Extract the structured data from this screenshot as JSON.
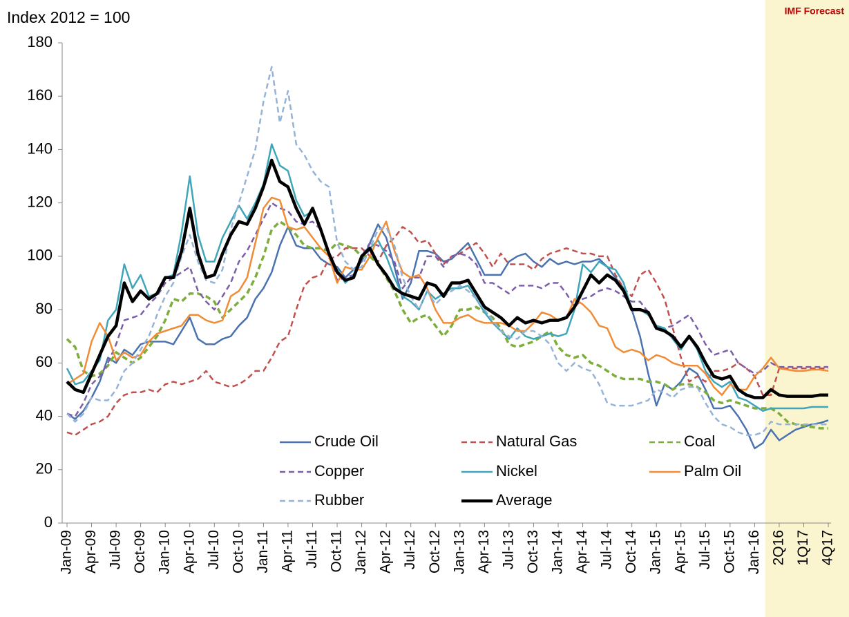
{
  "chart_data": {
    "type": "line",
    "y_label": "Index 2012 = 100",
    "annotation": "IMF Forecast",
    "categories": [
      "Jan-09",
      null,
      null,
      "Apr-09",
      null,
      null,
      "Jul-09",
      null,
      null,
      "Oct-09",
      null,
      null,
      "Jan-10",
      null,
      null,
      "Apr-10",
      null,
      null,
      "Jul-10",
      null,
      null,
      "Oct-10",
      null,
      null,
      "Jan-11",
      null,
      null,
      "Apr-11",
      null,
      null,
      "Jul-11",
      null,
      null,
      "Oct-11",
      null,
      null,
      "Jan-12",
      null,
      null,
      "Apr-12",
      null,
      null,
      "Jul-12",
      null,
      null,
      "Oct-12",
      null,
      null,
      "Jan-13",
      null,
      null,
      "Apr-13",
      null,
      null,
      "Jul-13",
      null,
      null,
      "Oct-13",
      null,
      null,
      "Jan-14",
      null,
      null,
      "Apr-14",
      null,
      null,
      "Jul-14",
      null,
      null,
      "Oct-14",
      null,
      null,
      "Jan-15",
      null,
      null,
      "Apr-15",
      null,
      null,
      "Jul-15",
      null,
      null,
      "Oct-15",
      null,
      null,
      "Jan-16",
      null,
      null,
      "2Q16",
      null,
      null,
      "1Q17",
      null,
      null,
      "4Q17"
    ],
    "ylim": [
      0,
      180
    ],
    "yticks": [
      0,
      20,
      40,
      60,
      80,
      100,
      120,
      140,
      160,
      180
    ],
    "grid": false,
    "legend": "bottom",
    "series": [
      {
        "name": "Crude Oil",
        "color": "#4a72b0",
        "dashed": false,
        "values": [
          41,
          39,
          42,
          47,
          53,
          62,
          60,
          65,
          63,
          67,
          68,
          68,
          68,
          67,
          72,
          77,
          69,
          67,
          67,
          69,
          70,
          74,
          77,
          84,
          88,
          94,
          104,
          111,
          104,
          103,
          103,
          99,
          97,
          96,
          92,
          95,
          98,
          105,
          112,
          107,
          96,
          84,
          90,
          102,
          102,
          101,
          98,
          99,
          102,
          105,
          99,
          93,
          93,
          93,
          98,
          100,
          101,
          98,
          96,
          99,
          97,
          98,
          97,
          98,
          98,
          99,
          96,
          92,
          88,
          80,
          70,
          56,
          44,
          52,
          50,
          53,
          58,
          56,
          50,
          43,
          43,
          44,
          40,
          35,
          28,
          30,
          35,
          31,
          33,
          35,
          36,
          37,
          37.5,
          38.5
        ]
      },
      {
        "name": "Natural Gas",
        "color": "#c0504d",
        "dashed": true,
        "values": [
          34,
          33,
          35,
          37,
          38,
          40,
          45,
          48,
          49,
          49,
          50,
          49,
          52,
          53,
          52,
          53,
          54,
          57,
          53,
          52,
          51,
          52,
          54,
          57,
          57,
          62,
          68,
          70,
          80,
          89,
          92,
          93,
          99,
          100,
          103,
          103,
          103,
          100,
          98,
          104,
          107,
          111,
          109,
          105,
          106,
          101,
          97,
          100,
          101,
          103,
          105,
          101,
          96,
          101,
          97,
          97,
          97,
          95,
          99,
          101,
          102,
          103,
          102,
          101,
          101,
          100,
          100,
          93,
          88,
          85,
          93,
          95,
          90,
          84,
          73,
          62,
          53,
          55,
          53,
          57,
          57,
          58,
          60,
          58,
          55,
          48,
          48,
          58,
          58,
          58,
          58,
          58,
          58,
          58
        ]
      },
      {
        "name": "Coal",
        "color": "#7dae3c",
        "dashed": true,
        "values": [
          69,
          66,
          57,
          55,
          56,
          59,
          64,
          62,
          60,
          62,
          66,
          70,
          76,
          84,
          83,
          86,
          86,
          85,
          83,
          77,
          80,
          83,
          86,
          92,
          100,
          110,
          113,
          111,
          108,
          104,
          103,
          103,
          102,
          105,
          104,
          103,
          100,
          100,
          97,
          92,
          87,
          80,
          75,
          77,
          78,
          74,
          70,
          74,
          80,
          80,
          81,
          79,
          77,
          73,
          67,
          66,
          67,
          68,
          70,
          72,
          66,
          63,
          62,
          63,
          60,
          59,
          57,
          55,
          54,
          54,
          54,
          53,
          53,
          52,
          50,
          52,
          52,
          51,
          49,
          46,
          45,
          46,
          45,
          44,
          43,
          43,
          43,
          41,
          38,
          37,
          36.5,
          36,
          35.5,
          35.5
        ]
      },
      {
        "name": "Copper",
        "color": "#7a5ea8",
        "dashed": true,
        "values": [
          41,
          40,
          45,
          52,
          55,
          60,
          67,
          76,
          77,
          78,
          82,
          85,
          90,
          92,
          94,
          96,
          87,
          83,
          80,
          85,
          90,
          98,
          102,
          108,
          114,
          120,
          118,
          117,
          113,
          112,
          113,
          110,
          100,
          91,
          92,
          93,
          100,
          105,
          104,
          102,
          98,
          88,
          92,
          92,
          100,
          100,
          96,
          100,
          101,
          100,
          97,
          90,
          90,
          88,
          86,
          89,
          89,
          89,
          88,
          90,
          90,
          86,
          81,
          84,
          85,
          87,
          88,
          87,
          85,
          83,
          83,
          79,
          73,
          73,
          74,
          76,
          78,
          73,
          67,
          63,
          64,
          65,
          60,
          58,
          56,
          57,
          60,
          58.5,
          58.5,
          58.5,
          58.5,
          58.5,
          58.5,
          58.5
        ]
      },
      {
        "name": "Nickel",
        "color": "#3fa5b8",
        "dashed": false,
        "values": [
          58,
          52,
          53,
          57,
          61,
          76,
          80,
          97,
          88,
          93,
          85,
          86,
          92,
          93,
          109,
          130,
          108,
          98,
          98,
          107,
          113,
          119,
          114,
          120,
          127,
          142,
          134,
          132,
          121,
          115,
          117,
          110,
          100,
          95,
          90,
          93,
          100,
          103,
          106,
          100,
          92,
          85,
          83,
          80,
          87,
          84,
          86,
          88,
          88,
          89,
          84,
          79,
          75,
          72,
          69,
          73,
          70,
          69,
          70,
          71,
          70,
          71,
          80,
          97,
          94,
          98,
          96,
          95,
          90,
          80,
          80,
          78,
          74,
          73,
          69,
          65,
          70,
          65,
          57,
          53,
          51,
          53,
          47,
          46,
          44,
          42,
          43,
          43,
          43,
          43,
          43,
          43.5,
          43.5,
          43.5
        ]
      },
      {
        "name": "Palm Oil",
        "color": "#f08c36",
        "dashed": false,
        "values": [
          52,
          54,
          56,
          68,
          75,
          70,
          61,
          64,
          62,
          63,
          68,
          71,
          72,
          73,
          74,
          78,
          78,
          76,
          75,
          76,
          85,
          87,
          92,
          105,
          118,
          122,
          121,
          111,
          110,
          111,
          107,
          103,
          100,
          90,
          96,
          95,
          95,
          100,
          107,
          113,
          102,
          94,
          92,
          93,
          88,
          80,
          75,
          75,
          77,
          78,
          76,
          75,
          75,
          75,
          74,
          72,
          72,
          75,
          79,
          78,
          76,
          77,
          84,
          82,
          79,
          74,
          73,
          66,
          64,
          65,
          64,
          61,
          63,
          62,
          60,
          59,
          59,
          59,
          56,
          51,
          48,
          52,
          50,
          50,
          55,
          58,
          62,
          58,
          57.5,
          57,
          57,
          57.5,
          57.5,
          57
        ]
      },
      {
        "name": "Rubber",
        "color": "#95b3d7",
        "dashed": true,
        "values": [
          41,
          38,
          41,
          47,
          46,
          46,
          50,
          57,
          60,
          65,
          70,
          78,
          85,
          90,
          100,
          108,
          98,
          91,
          90,
          95,
          110,
          120,
          130,
          140,
          158,
          171,
          150,
          162,
          142,
          138,
          132,
          128,
          126,
          105,
          98,
          95,
          96,
          103,
          110,
          111,
          104,
          92,
          85,
          80,
          87,
          82,
          85,
          87,
          89,
          87,
          84,
          80,
          76,
          72,
          70,
          69,
          72,
          72,
          70,
          67,
          60,
          57,
          60,
          58,
          57,
          52,
          45,
          44,
          44,
          44,
          45,
          46,
          50,
          49,
          47,
          50,
          51,
          51,
          45,
          40,
          37,
          36,
          34,
          33,
          33,
          34,
          38,
          37,
          37,
          37,
          37,
          37,
          37,
          37
        ]
      },
      {
        "name": "Average",
        "color": "#000000",
        "dashed": false,
        "values": [
          53,
          50,
          49,
          56,
          63,
          70,
          74,
          90,
          83,
          87,
          84,
          86,
          92,
          92,
          102,
          118,
          101,
          92,
          93,
          101,
          108,
          113,
          112,
          118,
          126,
          136,
          128,
          126,
          118,
          112,
          118,
          110,
          101,
          94,
          91,
          92,
          100,
          103,
          97,
          93,
          88,
          86,
          85,
          84,
          90,
          89,
          85,
          90,
          90,
          91,
          86,
          81,
          79,
          77,
          74,
          77,
          75,
          76,
          75,
          76,
          76,
          77,
          81,
          87,
          93,
          90,
          93,
          91,
          87,
          80,
          80,
          79,
          73,
          72,
          70,
          66,
          70,
          66,
          60,
          55,
          54,
          55,
          50,
          48,
          47,
          47,
          50,
          48,
          47.5,
          47.5,
          47.5,
          47.5,
          48,
          48
        ]
      }
    ]
  }
}
